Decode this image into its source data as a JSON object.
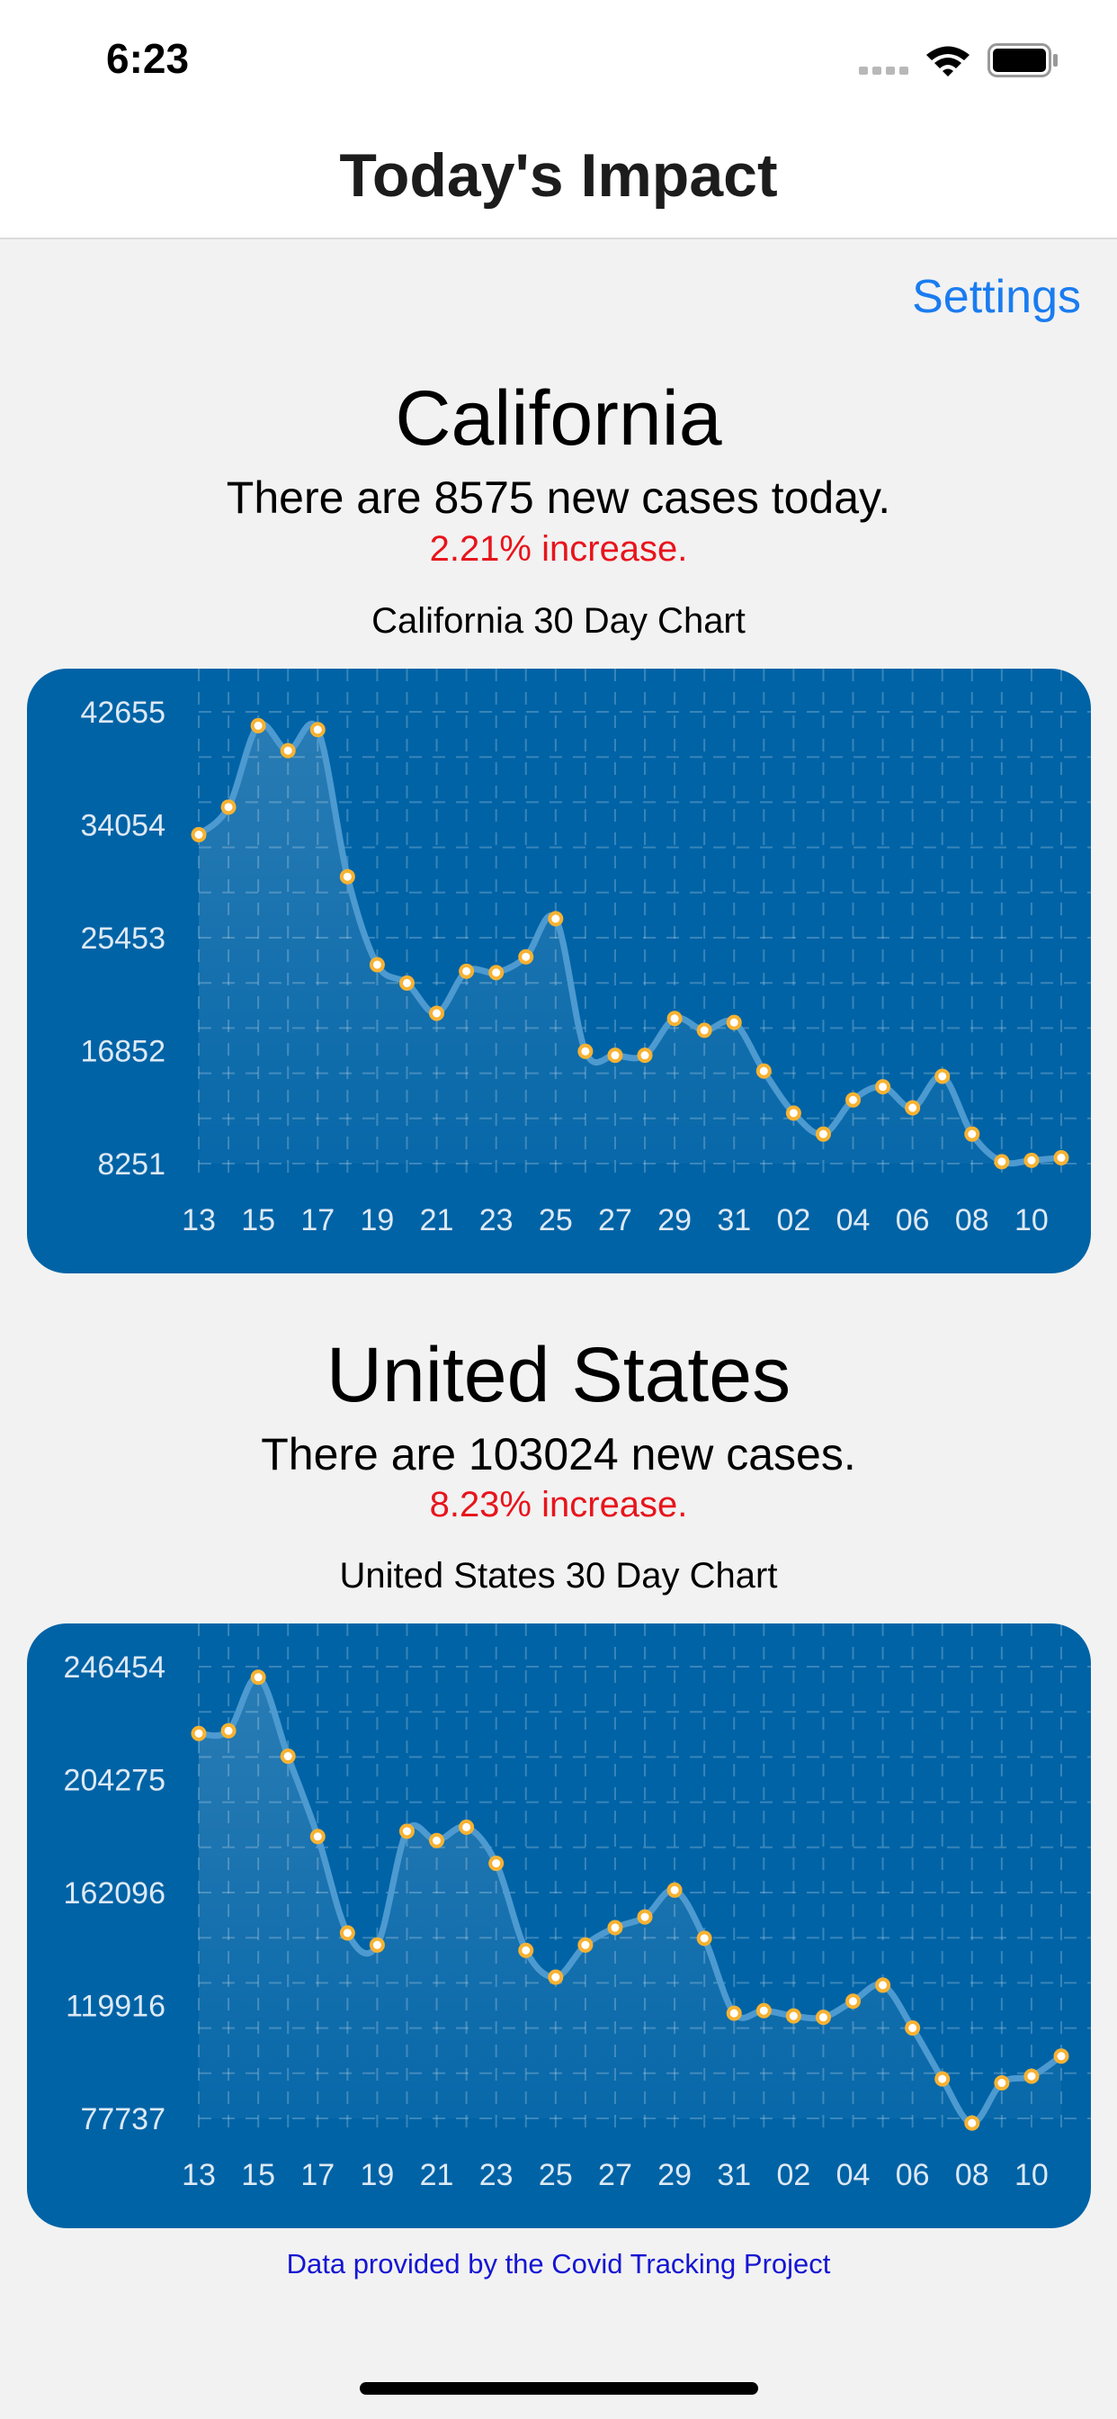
{
  "status_bar": {
    "time": "6:23",
    "icons": [
      "cellular-signal-icon",
      "wifi-icon",
      "battery-icon"
    ]
  },
  "nav": {
    "title": "Today's Impact"
  },
  "settings_label": "Settings",
  "colors": {
    "accent": "#1a7cf0",
    "increase_red": "#e8141c",
    "chart_bg": "#0063a6",
    "point": "#f7b232",
    "footer_link": "#1515d4"
  },
  "california": {
    "name": "California",
    "cases_text": "There are 8575 new cases today.",
    "increase_text": "2.21% increase.",
    "chart_caption": "California 30 Day Chart"
  },
  "united_states": {
    "name": "United States",
    "cases_text": "There are 103024 new cases.",
    "increase_text": "8.23% increase.",
    "chart_caption": "United States 30 Day Chart"
  },
  "footer": {
    "text": "Data provided by the Covid Tracking Project"
  },
  "chart_data": [
    {
      "type": "line",
      "title": "California 30 Day Chart",
      "xlabel": "",
      "ylabel": "",
      "x_tick_labels": [
        "13",
        "15",
        "17",
        "19",
        "21",
        "23",
        "25",
        "27",
        "29",
        "31",
        "02",
        "04",
        "06",
        "08",
        "10"
      ],
      "y_tick_labels": [
        "42655",
        "34054",
        "25453",
        "16852",
        "8251"
      ],
      "ylim": [
        8251,
        42655
      ],
      "grid": true,
      "x": [
        "13",
        "14",
        "15",
        "16",
        "17",
        "18",
        "19",
        "20",
        "21",
        "22",
        "23",
        "24",
        "25",
        "26",
        "27",
        "28",
        "29",
        "30",
        "31",
        "01",
        "02",
        "03",
        "04",
        "05",
        "06",
        "07",
        "08",
        "09",
        "10",
        "11"
      ],
      "values": [
        33300,
        35400,
        41600,
        39700,
        41300,
        30100,
        23400,
        22000,
        19700,
        22900,
        22800,
        24000,
        26900,
        16800,
        16500,
        16500,
        19300,
        18400,
        19000,
        15300,
        12100,
        10500,
        13100,
        14100,
        12500,
        14900,
        10500,
        8400,
        8500,
        8700
      ]
    },
    {
      "type": "line",
      "title": "United States 30 Day Chart",
      "xlabel": "",
      "ylabel": "",
      "x_tick_labels": [
        "13",
        "15",
        "17",
        "19",
        "21",
        "23",
        "25",
        "27",
        "29",
        "31",
        "02",
        "04",
        "06",
        "08",
        "10"
      ],
      "y_tick_labels": [
        "246454",
        "204275",
        "162096",
        "119916",
        "77737"
      ],
      "ylim": [
        77737,
        246454
      ],
      "grid": true,
      "x": [
        "13",
        "14",
        "15",
        "16",
        "17",
        "18",
        "19",
        "20",
        "21",
        "22",
        "23",
        "24",
        "25",
        "26",
        "27",
        "28",
        "29",
        "30",
        "31",
        "01",
        "02",
        "03",
        "04",
        "05",
        "06",
        "07",
        "08",
        "09",
        "10",
        "11"
      ],
      "values": [
        221500,
        222500,
        242500,
        213000,
        183000,
        147000,
        142500,
        185000,
        181500,
        186500,
        173000,
        140500,
        130500,
        142500,
        149000,
        153000,
        163000,
        145000,
        117000,
        118000,
        116000,
        115500,
        121500,
        127500,
        111500,
        92500,
        76000,
        91000,
        93500,
        101000
      ]
    }
  ]
}
